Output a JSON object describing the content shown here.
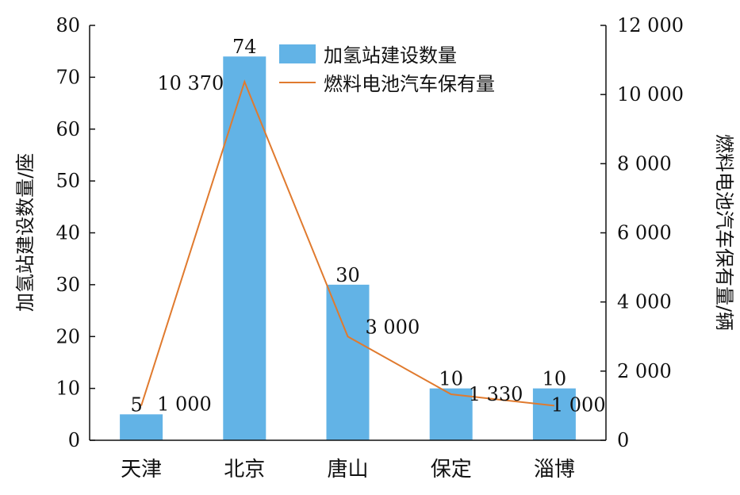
{
  "chart_data": {
    "type": "bar",
    "categories": [
      "天津",
      "北京",
      "唐山",
      "保定",
      "淄博"
    ],
    "series": [
      {
        "name": "加氢站建设数量",
        "type": "bar",
        "axis": "left",
        "values": [
          5,
          74,
          30,
          10,
          10
        ],
        "color": "#62b3e6",
        "labels": [
          "5",
          "74",
          "30",
          "10",
          "10"
        ]
      },
      {
        "name": "燃料电池汽车保有量",
        "type": "line",
        "axis": "right",
        "values": [
          1000,
          10370,
          3000,
          1330,
          1000
        ],
        "color": "#e07a2e",
        "labels": [
          "1 000",
          "10 370",
          "3 000",
          "1 330",
          "1 000"
        ]
      }
    ],
    "ylabel_left": "加氢站建设数量/座",
    "ylabel_right": "燃料电池汽车保有量/辆",
    "ylim_left": [
      0,
      80
    ],
    "ylim_right": [
      0,
      12000
    ],
    "yticks_left": [
      "0",
      "10",
      "20",
      "30",
      "40",
      "50",
      "60",
      "70",
      "80"
    ],
    "yticks_right": [
      "0",
      "2 000",
      "4 000",
      "6 000",
      "8 000",
      "10 000",
      "12 000"
    ],
    "grid": false,
    "legend_position": "top-right"
  }
}
